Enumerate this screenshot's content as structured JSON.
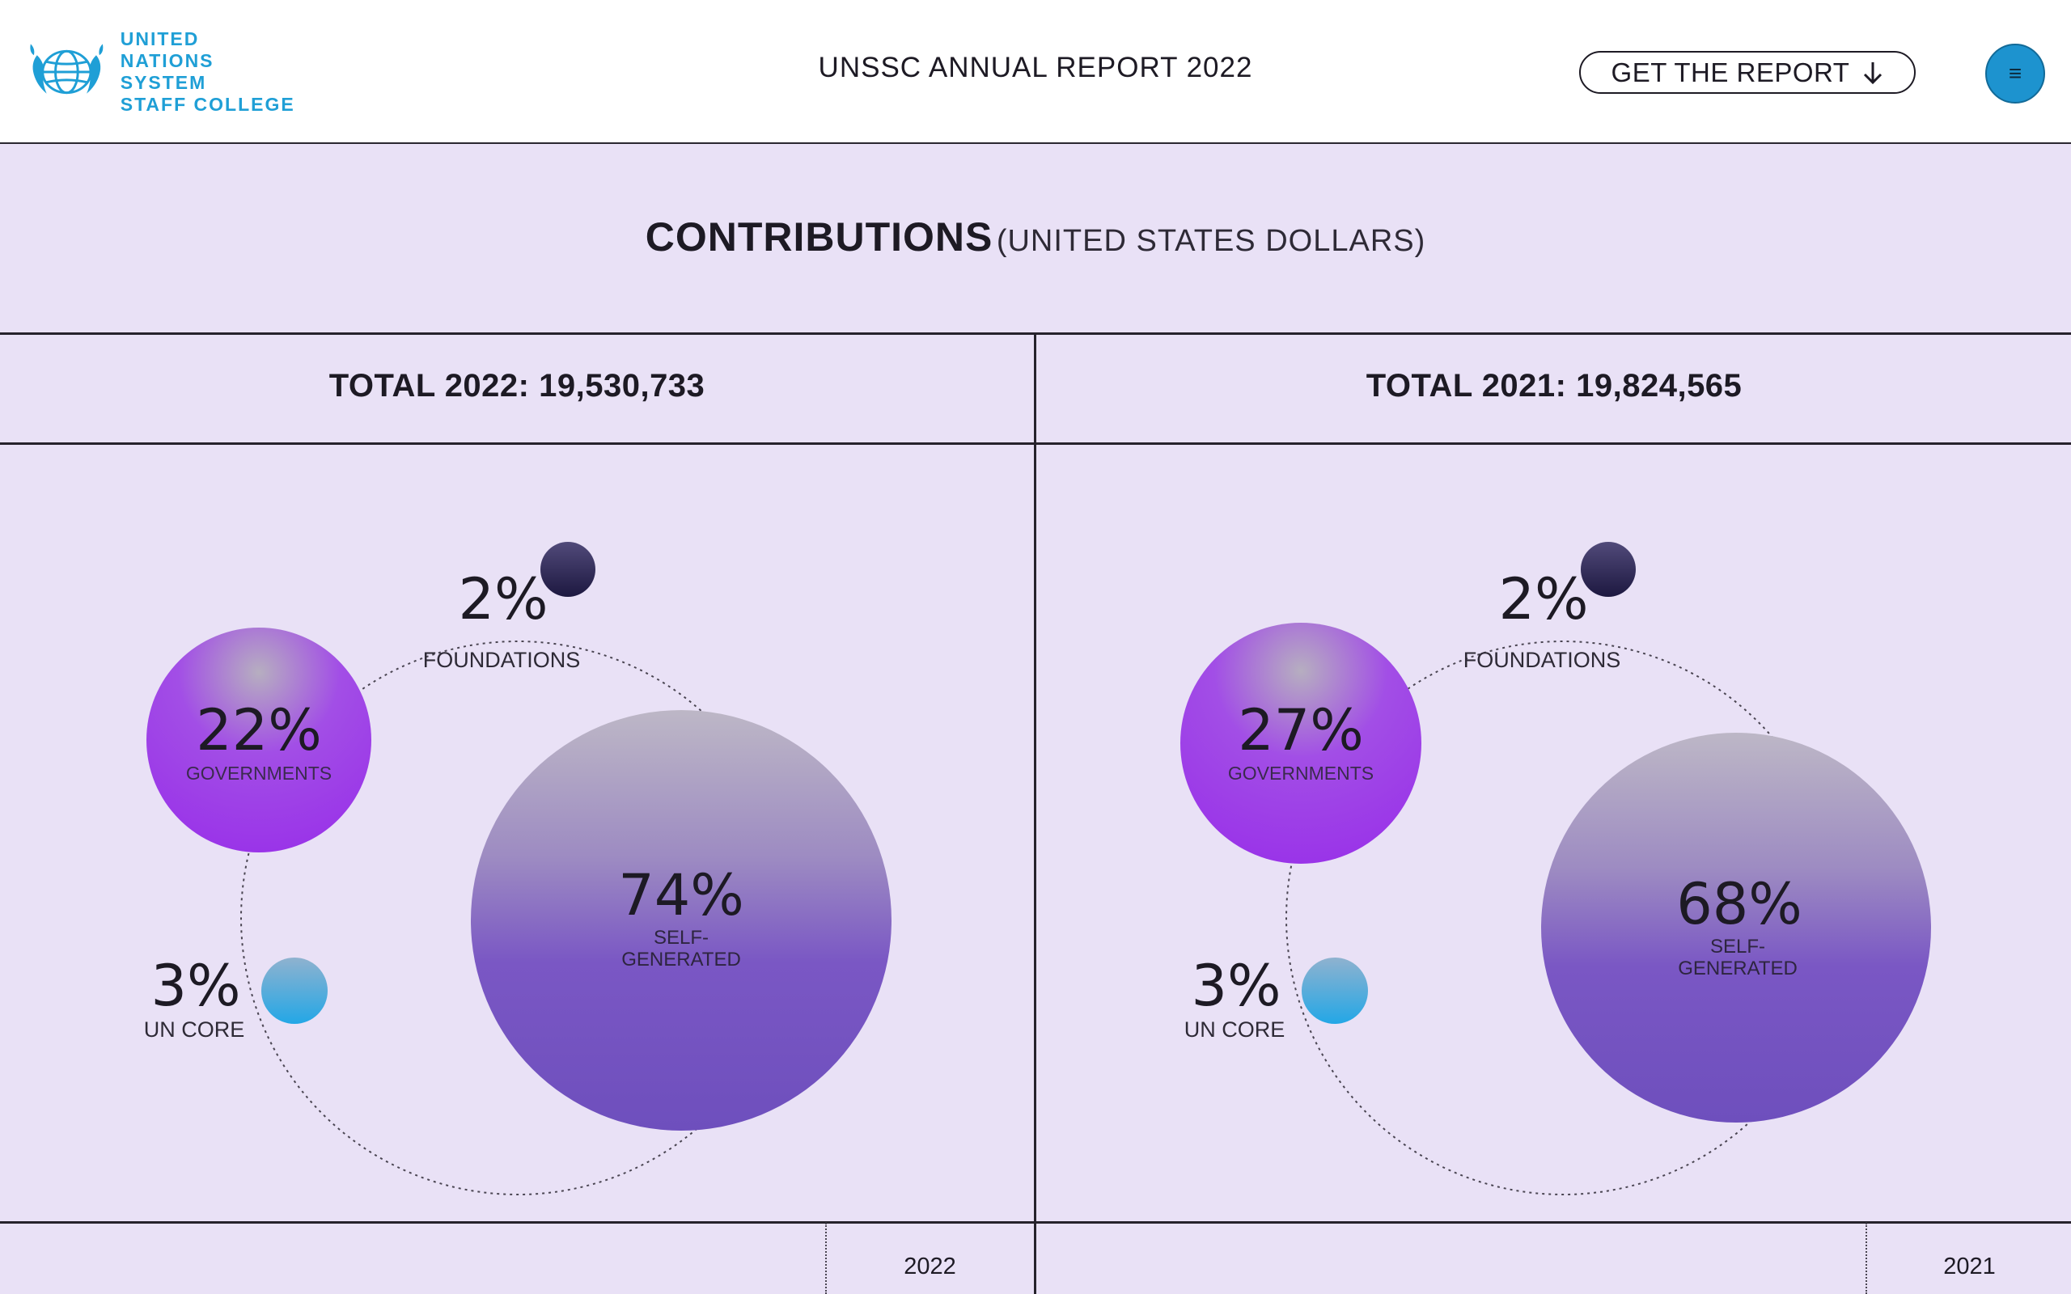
{
  "header": {
    "logo_lines": [
      "UNITED NATIONS",
      "SYSTEM",
      "STAFF COLLEGE"
    ],
    "title": "UNSSC ANNUAL REPORT 2022",
    "report_button": "GET THE REPORT",
    "report_button_icon": "arrow-down-icon",
    "menu_icon": "hamburger-menu-icon",
    "menu_glyph": "≡"
  },
  "section": {
    "title": "CONTRIBUTIONS",
    "subtitle": "(UNITED STATES DOLLARS)"
  },
  "colors": {
    "accent_blue": "#1d93cf",
    "governments": "#a13fe6",
    "self_generated": "#7150bf",
    "foundations": "#2a2350",
    "un_core": "#2fa9e3",
    "background": "#e9e1f6"
  },
  "panels": [
    {
      "total_label": "TOTAL 2022: 19,530,733",
      "year": "2022",
      "segments": {
        "foundations": {
          "pct": "2%",
          "label": "FOUNDATIONS"
        },
        "governments": {
          "pct": "22%",
          "label": "GOVERNMENTS"
        },
        "self_generated": {
          "pct": "74%",
          "label_line1": "SELF-",
          "label_line2": "GENERATED"
        },
        "un_core": {
          "pct": "3%",
          "label": "UN CORE"
        }
      }
    },
    {
      "total_label": "TOTAL 2021: 19,824,565",
      "year": "2021",
      "segments": {
        "foundations": {
          "pct": "2%",
          "label": "FOUNDATIONS"
        },
        "governments": {
          "pct": "27%",
          "label": "GOVERNMENTS"
        },
        "self_generated": {
          "pct": "68%",
          "label_line1": "SELF-",
          "label_line2": "GENERATED"
        },
        "un_core": {
          "pct": "3%",
          "label": "UN CORE"
        }
      }
    }
  ]
}
